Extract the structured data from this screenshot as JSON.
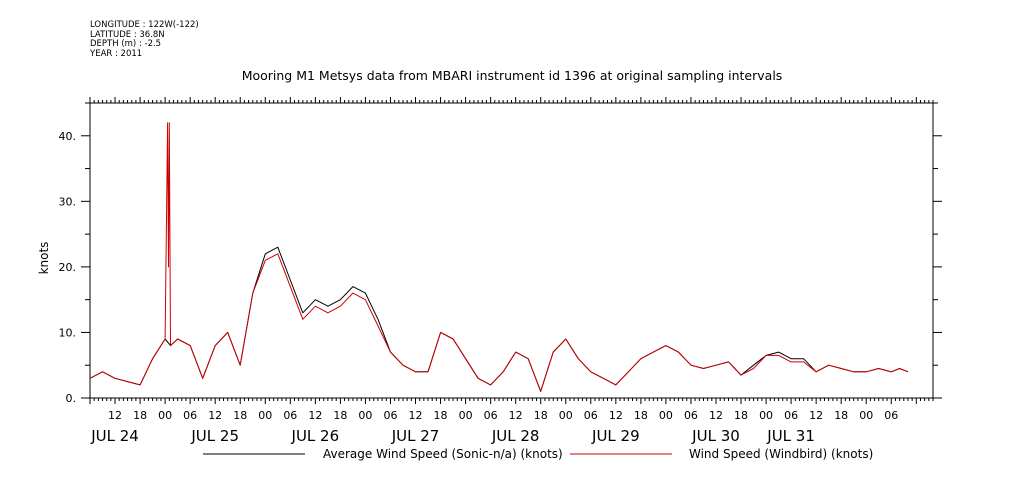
{
  "header": {
    "lines": [
      "LONGITUDE : 122W(-122)",
      "LATITUDE : 36.8N",
      "DEPTH (m) : -2.5",
      "YEAR : 2011"
    ]
  },
  "chart_data": {
    "type": "line",
    "title": "Mooring M1 Metsys data from MBARI instrument id 1396 at original sampling intervals",
    "ylabel": "knots",
    "xlabel": "",
    "xlim_hours": [
      0,
      202
    ],
    "ylim": [
      0,
      45
    ],
    "y_ticks": [
      0,
      10,
      20,
      30,
      40
    ],
    "y_tick_labels": [
      "0.",
      "10.",
      "20.",
      "30.",
      "40."
    ],
    "x_hour_ticks": [
      {
        "h": 6,
        "label": "12"
      },
      {
        "h": 12,
        "label": "18"
      },
      {
        "h": 18,
        "label": "00"
      },
      {
        "h": 24,
        "label": "06"
      },
      {
        "h": 30,
        "label": "12"
      },
      {
        "h": 36,
        "label": "18"
      },
      {
        "h": 42,
        "label": "00"
      },
      {
        "h": 48,
        "label": "06"
      },
      {
        "h": 54,
        "label": "12"
      },
      {
        "h": 60,
        "label": "18"
      },
      {
        "h": 66,
        "label": "00"
      },
      {
        "h": 72,
        "label": "06"
      },
      {
        "h": 78,
        "label": "12"
      },
      {
        "h": 84,
        "label": "18"
      },
      {
        "h": 90,
        "label": "00"
      },
      {
        "h": 96,
        "label": "06"
      },
      {
        "h": 102,
        "label": "12"
      },
      {
        "h": 108,
        "label": "18"
      },
      {
        "h": 114,
        "label": "00"
      },
      {
        "h": 120,
        "label": "06"
      },
      {
        "h": 126,
        "label": "12"
      },
      {
        "h": 132,
        "label": "18"
      },
      {
        "h": 138,
        "label": "00"
      },
      {
        "h": 144,
        "label": "06"
      },
      {
        "h": 150,
        "label": "12"
      },
      {
        "h": 156,
        "label": "18"
      },
      {
        "h": 162,
        "label": "00"
      },
      {
        "h": 168,
        "label": "06"
      },
      {
        "h": 174,
        "label": "12"
      },
      {
        "h": 180,
        "label": "18"
      },
      {
        "h": 186,
        "label": "00"
      },
      {
        "h": 192,
        "label": "06"
      }
    ],
    "x_day_labels": [
      {
        "h": 6,
        "label": "JUL 24"
      },
      {
        "h": 30,
        "label": "JUL 25"
      },
      {
        "h": 54,
        "label": "JUL 26"
      },
      {
        "h": 78,
        "label": "JUL 27"
      },
      {
        "h": 102,
        "label": "JUL 28"
      },
      {
        "h": 126,
        "label": "JUL 29"
      },
      {
        "h": 150,
        "label": "JUL 30"
      },
      {
        "h": 168,
        "label": "JUL 31"
      }
    ],
    "grid": false,
    "legend_position": "bottom",
    "series": [
      {
        "name": "Average Wind Speed (Sonic-n/a) (knots)",
        "color": "#000000",
        "x_hours": [
          0,
          3,
          6,
          9,
          12,
          15,
          18,
          19.3,
          21,
          24,
          27,
          30,
          33,
          36,
          39,
          42,
          45,
          48,
          51,
          54,
          57,
          60,
          63,
          66,
          69,
          72,
          75,
          78,
          81,
          84,
          87,
          90,
          93,
          96,
          99,
          102,
          105,
          108,
          111,
          114,
          117,
          120,
          123,
          126,
          129,
          132,
          135,
          138,
          141,
          144,
          147,
          150,
          153,
          156,
          159,
          162,
          165,
          168,
          171,
          174,
          177,
          180,
          183,
          186,
          189,
          192,
          194,
          196
        ],
        "values": [
          3,
          4,
          3,
          2.5,
          2,
          6,
          9,
          8,
          9,
          8,
          3,
          8,
          10,
          5,
          16,
          22,
          23,
          18,
          13,
          15,
          14,
          15,
          17,
          16,
          12,
          7,
          5,
          4,
          4,
          10,
          9,
          6,
          3,
          2,
          4,
          7,
          6,
          1,
          7,
          9,
          6,
          4,
          3,
          2,
          4,
          6,
          7,
          8,
          7,
          5,
          4.5,
          5,
          5.5,
          3.5,
          5,
          6.5,
          7,
          6,
          6,
          4,
          5,
          4.5,
          4,
          4,
          4.5,
          4,
          4.5,
          4
        ]
      },
      {
        "name": "Wind Speed (Windbird) (knots)",
        "color": "#cc0000",
        "x_hours": [
          0,
          3,
          6,
          9,
          12,
          15,
          18,
          18.6,
          18.8,
          19,
          19.3,
          21,
          24,
          27,
          30,
          33,
          36,
          39,
          42,
          45,
          48,
          51,
          54,
          57,
          60,
          63,
          66,
          69,
          72,
          75,
          78,
          81,
          84,
          87,
          90,
          93,
          96,
          99,
          102,
          105,
          108,
          111,
          114,
          117,
          120,
          123,
          126,
          129,
          132,
          135,
          138,
          141,
          144,
          147,
          150,
          153,
          156,
          159,
          162,
          165,
          168,
          171,
          174,
          177,
          180,
          183,
          186,
          189,
          192,
          194,
          196
        ],
        "values": [
          3,
          4,
          3,
          2.5,
          2,
          6,
          9,
          42,
          20,
          42,
          8,
          9,
          8,
          3,
          8,
          10,
          5,
          16,
          21,
          22,
          17,
          12,
          14,
          13,
          14,
          16,
          15,
          11,
          7,
          5,
          4,
          4,
          10,
          9,
          6,
          3,
          2,
          4,
          7,
          6,
          1,
          7,
          9,
          6,
          4,
          3,
          2,
          4,
          6,
          7,
          8,
          7,
          5,
          4.5,
          5,
          5.5,
          3.5,
          4.5,
          6.5,
          6.5,
          5.5,
          5.5,
          4,
          5,
          4.5,
          4,
          4,
          4.5,
          4,
          4.5,
          4
        ]
      }
    ]
  }
}
